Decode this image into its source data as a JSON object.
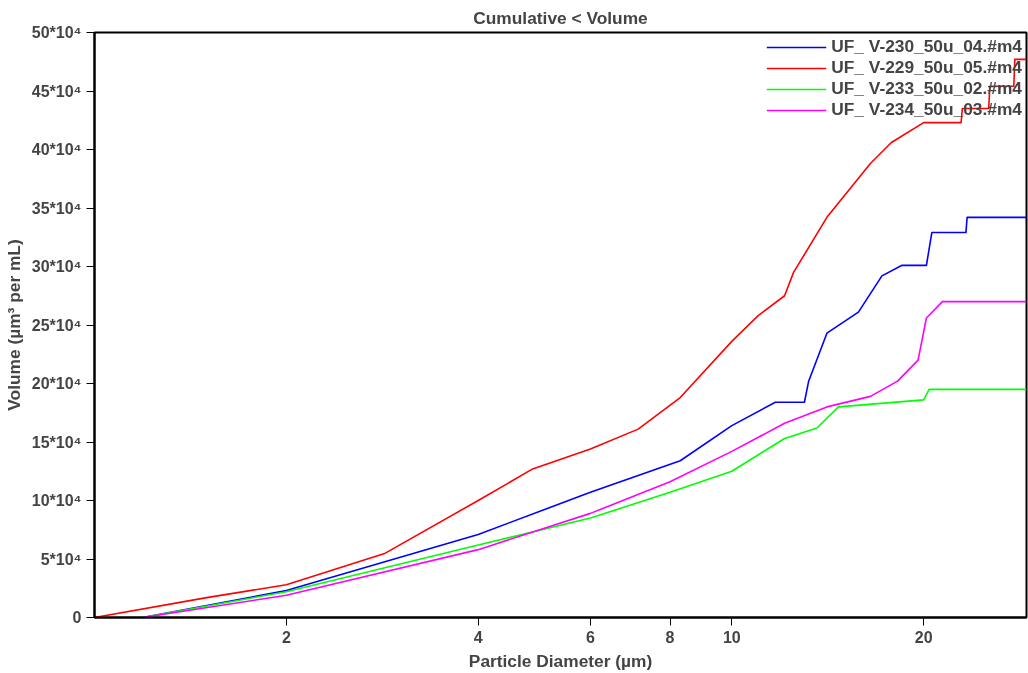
{
  "chart_data": {
    "type": "line",
    "title": "Cumulative < Volume",
    "xlabel": "Particle Diameter (µm)",
    "ylabel": "Volume (µm³ per mL)",
    "log": "x",
    "xlim": [
      1.0,
      29
    ],
    "xticks": [
      2,
      4,
      6,
      8,
      10,
      20
    ],
    "ylim": [
      0,
      500000
    ],
    "yticks": [
      0,
      {
        "value": 50000,
        "label": "5*10⁴"
      },
      {
        "value": 100000,
        "label": "10*10⁴"
      },
      {
        "value": 150000,
        "label": "15*10⁴"
      },
      {
        "value": 200000,
        "label": "20*10⁴"
      },
      {
        "value": 250000,
        "label": "25*10⁴"
      },
      {
        "value": 300000,
        "label": "30*10⁴"
      },
      {
        "value": 350000,
        "label": "35*10⁴"
      },
      {
        "value": 400000,
        "label": "40*10⁴"
      },
      {
        "value": 450000,
        "label": "45*10⁴"
      },
      {
        "value": 500000,
        "label": "50*10⁴"
      }
    ],
    "grid": false,
    "legend": "top right",
    "marker": "none",
    "line_style": "solid",
    "series": [
      {
        "name": "UF_ V-230_50u_04.#m4",
        "color": "#0000ff",
        "x": [
          1.19,
          2,
          4,
          6,
          8.3,
          10,
          11.7,
          13.0,
          13.2,
          14.1,
          15.8,
          17.2,
          18.5,
          20.2,
          20.6,
          23.3,
          23.4,
          29
        ],
        "values": [
          0,
          23000,
          71000,
          107000,
          134000,
          164000,
          184000,
          184000,
          202000,
          243000,
          261000,
          292000,
          301000,
          301000,
          329000,
          329000,
          342000,
          342000
        ]
      },
      {
        "name": "UF_ V-229_50u_05.#m4",
        "color": "#ff0000",
        "x": [
          1.0,
          1.5,
          2,
          2.86,
          4,
          4.87,
          6,
          7.13,
          8.3,
          10,
          11.0,
          12.1,
          12.5,
          14.1,
          16.5,
          17.8,
          20,
          22.9,
          23.0,
          25.3,
          25.4,
          27.7,
          27.8,
          29
        ],
        "values": [
          0,
          17000,
          28000,
          55000,
          100000,
          127000,
          144000,
          161000,
          188000,
          236000,
          258000,
          275000,
          295000,
          342000,
          388000,
          406000,
          423000,
          423000,
          435000,
          435000,
          454000,
          454000,
          477000,
          477000
        ]
      },
      {
        "name": "UF_ V-233_50u_02.#m4",
        "color": "#00ff00",
        "x": [
          1.19,
          2,
          4,
          6,
          8,
          10,
          12.1,
          13.6,
          14.7,
          20,
          20.4,
          29
        ],
        "values": [
          0,
          22000,
          62000,
          85000,
          107000,
          125000,
          153000,
          162000,
          180000,
          186000,
          195000,
          195000
        ]
      },
      {
        "name": "UF_ V-234_50u_03.#m4",
        "color": "#ff00ff",
        "x": [
          1.19,
          2,
          4,
          6,
          8,
          10,
          12.1,
          14.1,
          16.5,
          18.2,
          19.6,
          20.2,
          21.4,
          29
        ],
        "values": [
          0,
          19000,
          58000,
          89000,
          116000,
          142000,
          166000,
          180000,
          189000,
          202000,
          220000,
          256000,
          270000,
          270000
        ]
      }
    ]
  }
}
